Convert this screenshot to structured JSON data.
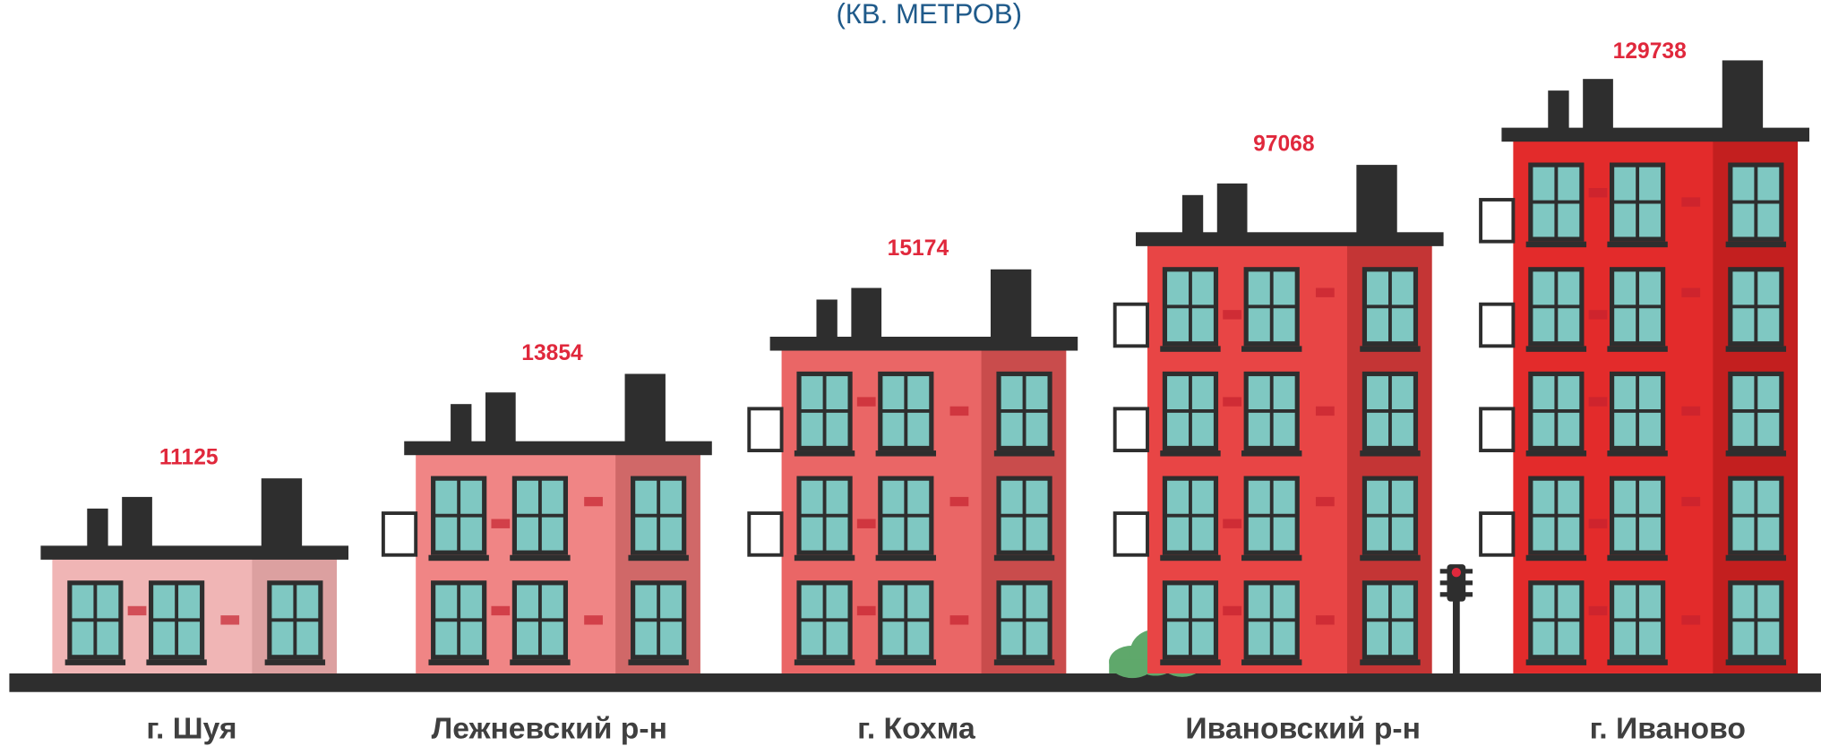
{
  "title": "(КВ. МЕТРОВ)",
  "items": [
    {
      "label": "г. Шуя",
      "value": 11125
    },
    {
      "label": "Лежневский р-н",
      "value": 13854
    },
    {
      "label": "г. Кохма",
      "value": 15174
    },
    {
      "label": "Ивановский р-н",
      "value": 97068
    },
    {
      "label": "г. Иваново",
      "value": 129738
    }
  ]
}
